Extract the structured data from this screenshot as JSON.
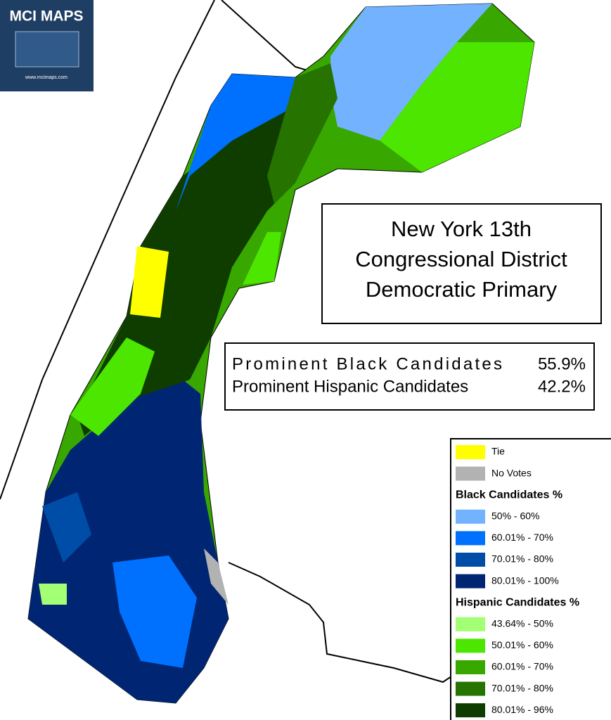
{
  "logo": {
    "title": "MCI MAPS",
    "url": "www.mcimaps.com"
  },
  "title": {
    "lines": [
      "New York 13th",
      "Congressional District",
      "Democratic Primary"
    ]
  },
  "results": {
    "rows": [
      {
        "label": "Prominent Black Candidates",
        "value": "55.9%"
      },
      {
        "label": "Prominent Hispanic Candidates",
        "value": "42.2%"
      }
    ]
  },
  "legend": {
    "general": [
      {
        "label": "Tie",
        "color": "#ffff00"
      },
      {
        "label": "No Votes",
        "color": "#b2b2b2"
      }
    ],
    "groups": [
      {
        "title": "Black Candidates %",
        "items": [
          {
            "label": "50% - 60%",
            "color": "#73b2ff"
          },
          {
            "label": "60.01% - 70%",
            "color": "#0070ff"
          },
          {
            "label": "70.01% - 80%",
            "color": "#004da8"
          },
          {
            "label": "80.01% - 100%",
            "color": "#002673"
          }
        ]
      },
      {
        "title": "Hispanic Candidates %",
        "items": [
          {
            "label": "43.64% - 50%",
            "color": "#a3ff73"
          },
          {
            "label": "50.01% - 60%",
            "color": "#4ce600"
          },
          {
            "label": "60.01% - 70%",
            "color": "#38a800"
          },
          {
            "label": "70.01% - 80%",
            "color": "#267300"
          },
          {
            "label": "80.01% - 96%",
            "color": "#0f3d00"
          }
        ]
      }
    ]
  }
}
